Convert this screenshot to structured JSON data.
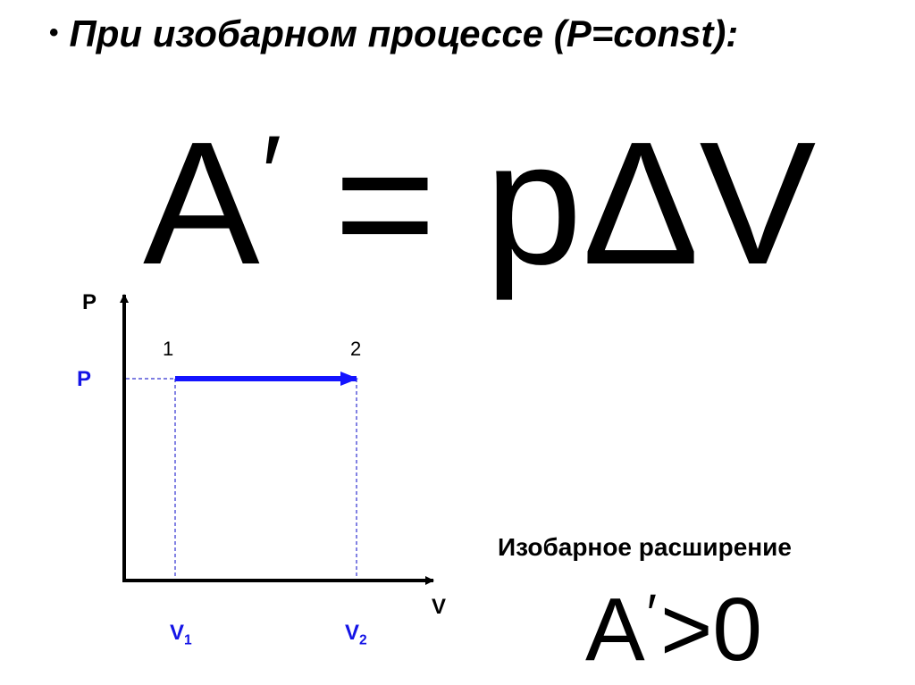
{
  "slide": {
    "bullet": "•",
    "title": "При изобарном процессе (P=const):",
    "formula": {
      "lhs": "A",
      "prime": "′",
      "eq": " = ",
      "rhs": "pΔV"
    },
    "caption": "Изобарное расширение",
    "condition": {
      "lhs": "A",
      "prime": "′",
      "rel": ">",
      "rhs": "0"
    }
  },
  "diagram": {
    "axis_y_label": "P",
    "axis_x_label": "V",
    "pressure_label": "P",
    "state_1": "1",
    "state_2": "2",
    "v1": {
      "base": "V",
      "sub": "1"
    },
    "v2": {
      "base": "V",
      "sub": "2"
    },
    "colors": {
      "process": "#1414ff",
      "guides": "#3030d0",
      "axes": "#000000",
      "labels_blue": "#1414e6"
    }
  }
}
